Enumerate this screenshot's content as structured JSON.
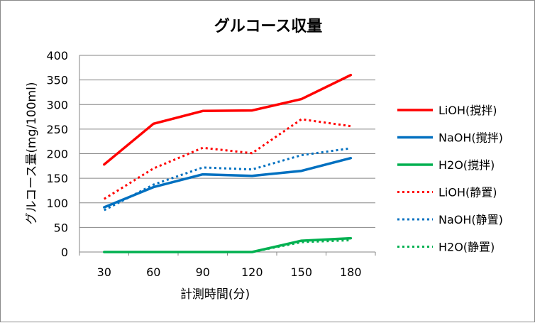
{
  "chart_data": {
    "type": "line",
    "title": "グルコース収量",
    "xlabel": "計測時間(分)",
    "ylabel": "グルコース量(mg/100ml)",
    "categories": [
      "30",
      "60",
      "90",
      "120",
      "150",
      "180"
    ],
    "ylim": [
      0,
      400
    ],
    "yticks": [
      "0",
      "50",
      "100",
      "150",
      "200",
      "250",
      "300",
      "350",
      "400"
    ],
    "grid": "horizontal",
    "legend_position": "right",
    "series": [
      {
        "name": "LiOH(撹拌)",
        "color": "#ff0000",
        "style": "solid",
        "values": [
          178,
          261,
          287,
          288,
          311,
          360
        ]
      },
      {
        "name": "NaOH(撹拌)",
        "color": "#0070c0",
        "style": "solid",
        "values": [
          91,
          132,
          158,
          155,
          165,
          191
        ]
      },
      {
        "name": "H2O(撹拌)",
        "color": "#00b050",
        "style": "solid",
        "values": [
          0,
          0,
          0,
          0,
          23,
          28
        ]
      },
      {
        "name": "LiOH(静置)",
        "color": "#ff0000",
        "style": "dotted",
        "values": [
          108,
          170,
          212,
          201,
          270,
          256
        ]
      },
      {
        "name": "NaOH(静置)",
        "color": "#0070c0",
        "style": "dotted",
        "values": [
          85,
          137,
          172,
          168,
          197,
          211
        ]
      },
      {
        "name": "H2O(静置)",
        "color": "#00b050",
        "style": "dotted",
        "values": [
          0,
          0,
          0,
          0,
          20,
          24
        ]
      }
    ]
  }
}
